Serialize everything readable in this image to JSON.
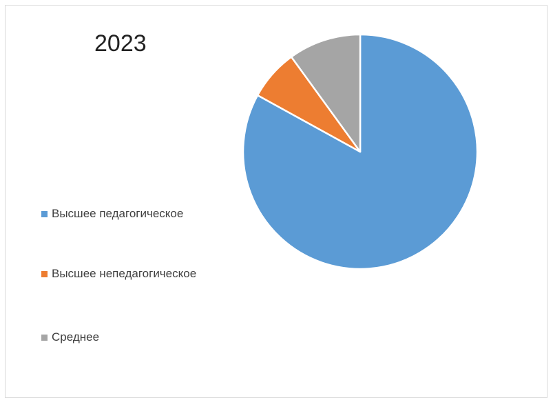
{
  "chart_data": {
    "type": "pie",
    "title": "2023",
    "legend_position": "left",
    "categories": [
      "Высшее педагогическое",
      "Высшее непедагогическое",
      "Среднее"
    ],
    "values": [
      83,
      7,
      10
    ],
    "colors": [
      "#5b9bd5",
      "#ed7d31",
      "#a5a5a5"
    ],
    "start_angle_deg": 0,
    "direction": "clockwise"
  }
}
